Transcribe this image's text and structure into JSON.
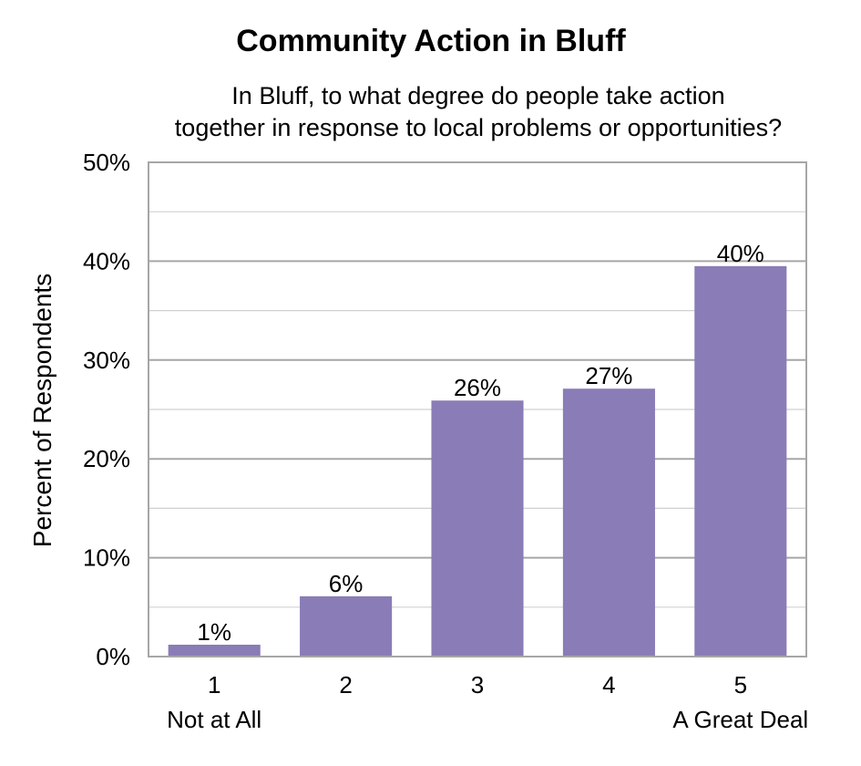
{
  "chart_data": {
    "type": "bar",
    "title": "Community Action in Bluff",
    "subtitle_lines": [
      "In Bluff, to what degree do people take action",
      "together in response to local problems or opportunities?"
    ],
    "ylabel": "Percent of Respondents",
    "xlabel": "",
    "categories": [
      "1",
      "2",
      "3",
      "4",
      "5"
    ],
    "category_sublabels": [
      "Not at All",
      "",
      "",
      "",
      "A Great Deal"
    ],
    "values": [
      1.2,
      6.1,
      25.9,
      27.1,
      39.5
    ],
    "data_labels": [
      "1%",
      "6%",
      "26%",
      "27%",
      "40%"
    ],
    "ylim": [
      0,
      50
    ],
    "yticks": [
      0,
      10,
      20,
      30,
      40,
      50
    ],
    "ytick_labels": [
      "0%",
      "10%",
      "20%",
      "30%",
      "40%",
      "50%"
    ],
    "minor_gridlines": [
      5,
      15,
      25,
      35,
      45
    ],
    "grid": true,
    "bar_color": "#8A7CB6"
  }
}
